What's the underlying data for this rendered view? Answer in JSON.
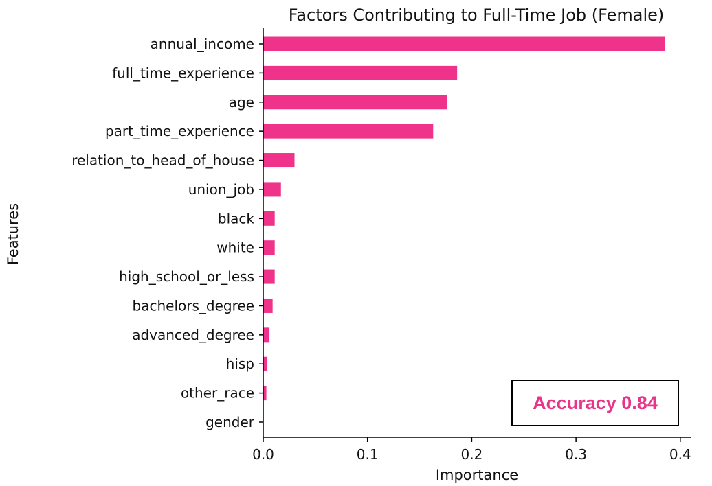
{
  "colors": {
    "bar": "#F0338A",
    "accent": "#E8348A",
    "axis": "#000000"
  },
  "chart_data": {
    "type": "bar",
    "orientation": "horizontal",
    "title": "Factors Contributing to Full-Time Job (Female)",
    "xlabel": "Importance",
    "ylabel": "Features",
    "xlim": [
      0,
      0.41
    ],
    "xticks": [
      0.0,
      0.1,
      0.2,
      0.3,
      0.4
    ],
    "xtick_labels": [
      "0.0",
      "0.1",
      "0.2",
      "0.3",
      "0.4"
    ],
    "grid": false,
    "categories": [
      "annual_income",
      "full_time_experience",
      "age",
      "part_time_experience",
      "relation_to_head_of_house",
      "union_job",
      "black",
      "white",
      "high_school_or_less",
      "bachelors_degree",
      "advanced_degree",
      "hisp",
      "other_race",
      "gender"
    ],
    "values": [
      0.385,
      0.186,
      0.176,
      0.163,
      0.03,
      0.017,
      0.011,
      0.011,
      0.011,
      0.009,
      0.006,
      0.004,
      0.003,
      0.0
    ]
  },
  "annotation": {
    "text": "Accuracy 0.84"
  }
}
